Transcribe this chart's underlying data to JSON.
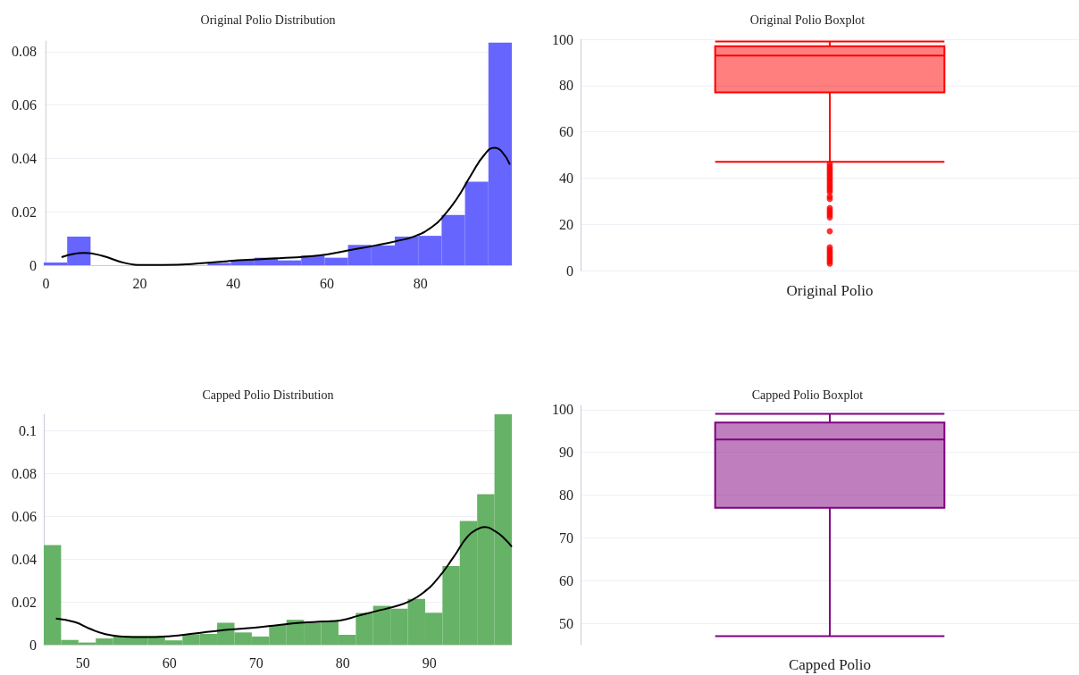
{
  "chart_data": [
    {
      "type": "histogram",
      "title": "Original Polio Distribution",
      "xlim": [
        -0.5,
        99.5
      ],
      "xticks": [
        0,
        20,
        40,
        60,
        80
      ],
      "ylim": [
        0,
        0.084
      ],
      "yticks": [
        0,
        0.02,
        0.04,
        0.06,
        0.08
      ],
      "grid": "y",
      "series": [
        {
          "type": "histogram",
          "color": "#6666ff",
          "bins": [
            -0.5,
            4.5,
            9.5,
            14.5,
            19.5,
            24.5,
            29.5,
            34.5,
            39.5,
            44.5,
            49.5,
            54.5,
            59.5,
            64.5,
            69.5,
            74.5,
            79.5,
            84.5,
            89.5,
            94.5,
            99.5
          ],
          "values": [
            0.001,
            0.0107,
            0,
            0,
            0,
            0,
            null,
            0.0008,
            0.002,
            0.0028,
            0.0018,
            0.0036,
            0.0028,
            0.0076,
            0.0074,
            0.0107,
            0.011,
            0.0188,
            0.0313,
            0.0834
          ]
        },
        {
          "type": "line",
          "color": "#000000",
          "x": [
            3.3,
            8.2,
            12,
            16.9,
            20.9,
            25,
            34,
            41,
            48.5,
            56,
            60,
            64.5,
            70.4,
            74.8,
            79,
            82.8,
            85,
            87.8,
            90.8,
            93.7,
            95.8,
            97.3,
            99.1
          ],
          "values": [
            0.003,
            0.0046,
            0.0035,
            0.0008,
            0.0001,
            0.0001,
            0.0008,
            0.0018,
            0.0025,
            0.0033,
            0.004,
            0.0055,
            0.0074,
            0.009,
            0.011,
            0.0148,
            0.0186,
            0.025,
            0.0338,
            0.0415,
            0.044,
            0.0427,
            0.0377
          ]
        }
      ]
    },
    {
      "type": "box",
      "title": "Original Polio Boxplot",
      "categories": [
        "Original Polio"
      ],
      "ylim": [
        0,
        100
      ],
      "yticks": [
        0,
        20,
        40,
        60,
        80,
        100
      ],
      "grid": "y",
      "series": [
        {
          "color": "#ff0000",
          "boxes": [
            {
              "low": 47,
              "q1": 77,
              "median": 93,
              "q3": 97,
              "high": 99,
              "outliers": [
                46,
                45,
                44,
                43,
                42,
                41,
                40,
                39,
                38,
                37,
                36,
                35,
                34,
                32,
                31,
                27,
                26,
                25,
                24,
                23,
                17,
                10,
                9,
                8,
                7,
                6,
                5,
                4,
                3
              ]
            }
          ]
        }
      ]
    },
    {
      "type": "histogram",
      "title": "Capped Polio Distribution",
      "xlim": [
        45.5,
        99.5
      ],
      "xticks": [
        50,
        60,
        70,
        80,
        90
      ],
      "ylim": [
        0,
        0.1076
      ],
      "yticks": [
        0,
        0.02,
        0.04,
        0.06,
        0.08,
        0.1
      ],
      "grid": "y",
      "series": [
        {
          "type": "histogram",
          "color": "#66b266",
          "bins": [
            45.5,
            47.5,
            49.5,
            51.5,
            53.5,
            55.5,
            57.5,
            59.5,
            61.5,
            63.5,
            65.5,
            67.5,
            69.5,
            71.5,
            73.5,
            75.5,
            77.5,
            79.5,
            81.5,
            83.5,
            85.5,
            87.5,
            89.5,
            91.5,
            93.5,
            95.5,
            97.5,
            99.5
          ],
          "values": [
            0.0465,
            0.0022,
            0.001,
            0.0029,
            0.004,
            0.004,
            0.004,
            0.002,
            0.0048,
            0.005,
            0.0102,
            0.0057,
            0.0038,
            0.0092,
            0.0116,
            0.0103,
            0.011,
            0.0046,
            0.0148,
            0.0181,
            0.0168,
            0.0214,
            0.0149,
            0.0367,
            0.0578,
            0.0703,
            0.1076
          ]
        },
        {
          "type": "line",
          "color": "#000000",
          "x": [
            46.9,
            49.1,
            50.7,
            52.6,
            54.6,
            57,
            60.1,
            62.9,
            66,
            68.8,
            72,
            75.1,
            77.9,
            79.8,
            81.8,
            83.8,
            86.1,
            87.7,
            89.3,
            90.9,
            92.8,
            94.4,
            95.6,
            96.4,
            97.6,
            98.6,
            99.5
          ],
          "values": [
            0.0122,
            0.0105,
            0.0076,
            0.0049,
            0.0038,
            0.0035,
            0.004,
            0.0052,
            0.0067,
            0.0076,
            0.0089,
            0.0102,
            0.0108,
            0.0114,
            0.0135,
            0.0156,
            0.0179,
            0.0203,
            0.0243,
            0.0306,
            0.041,
            0.0505,
            0.0541,
            0.0549,
            0.0529,
            0.0497,
            0.0457
          ]
        }
      ]
    },
    {
      "type": "box",
      "title": "Capped Polio Boxplot",
      "categories": [
        "Capped Polio"
      ],
      "ylim": [
        45,
        101
      ],
      "yticks": [
        50,
        60,
        70,
        80,
        90,
        100
      ],
      "grid": "y",
      "series": [
        {
          "color": "#800080",
          "boxes": [
            {
              "low": 47,
              "q1": 77,
              "median": 93,
              "q3": 97,
              "high": 99
            }
          ]
        }
      ]
    }
  ]
}
